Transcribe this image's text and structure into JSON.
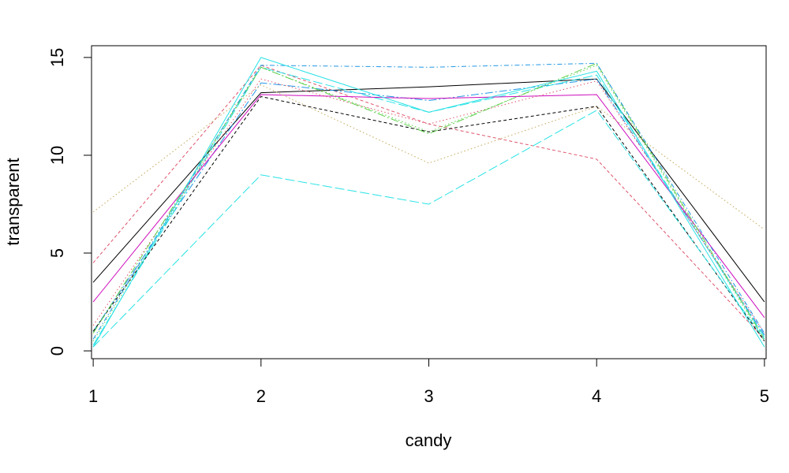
{
  "chart_data": {
    "type": "line",
    "title": "",
    "xlabel": "candy",
    "ylabel": "transparent",
    "x": [
      1,
      2,
      3,
      4,
      5
    ],
    "xticks": [
      "1",
      "2",
      "3",
      "4",
      "5"
    ],
    "yticks": [
      "0",
      "5",
      "10",
      "15"
    ],
    "xlim": [
      0.99,
      5.01
    ],
    "ylim": [
      -0.4,
      15.6
    ],
    "grid": false,
    "legend": "none",
    "series": [
      {
        "values": [
          3.5,
          13.2,
          13.5,
          13.9,
          2.5
        ],
        "color": "#000000",
        "dash": "solid"
      },
      {
        "values": [
          4.5,
          14.6,
          11.6,
          9.8,
          0.6
        ],
        "color": "#DF536B",
        "dash": "4,3"
      },
      {
        "values": [
          0.5,
          14.5,
          11.2,
          14.6,
          0.5
        ],
        "color": "#61D04F",
        "dash": "1.5,3"
      },
      {
        "values": [
          1.0,
          13.7,
          12.8,
          13.9,
          0.8
        ],
        "color": "#2297E6",
        "dash": "10,3,2,3"
      },
      {
        "values": [
          0.3,
          14.5,
          12.2,
          14.1,
          0.7
        ],
        "color": "#28E2E5",
        "dash": "12,4"
      },
      {
        "values": [
          2.5,
          13.1,
          12.9,
          13.1,
          1.7
        ],
        "color": "#CD0BBC",
        "dash": "solid"
      },
      {
        "values": [
          7.1,
          13.6,
          9.6,
          12.5,
          6.2
        ],
        "color": "#C5A85A",
        "dash": "1.5,3"
      },
      {
        "values": [
          1.0,
          13.0,
          11.2,
          12.5,
          0.5
        ],
        "color": "#000000",
        "dash": "4,3"
      },
      {
        "values": [
          1.3,
          13.9,
          11.6,
          13.8,
          0.9
        ],
        "color": "#DF536B",
        "dash": "1.5,3"
      },
      {
        "values": [
          0.9,
          14.5,
          11.1,
          14.7,
          0.6
        ],
        "color": "#61D04F",
        "dash": "10,3,2,3"
      },
      {
        "values": [
          0.6,
          14.6,
          14.5,
          14.7,
          0.9
        ],
        "color": "#2297E6",
        "dash": "6,3,1.5,3"
      },
      {
        "values": [
          0.2,
          9.0,
          7.5,
          12.3,
          0.6
        ],
        "color": "#28E2E5",
        "dash": "12,4"
      },
      {
        "values": [
          0.2,
          15.0,
          12.2,
          14.3,
          0.2
        ],
        "color": "#28E2E5",
        "dash": "solid"
      }
    ]
  }
}
